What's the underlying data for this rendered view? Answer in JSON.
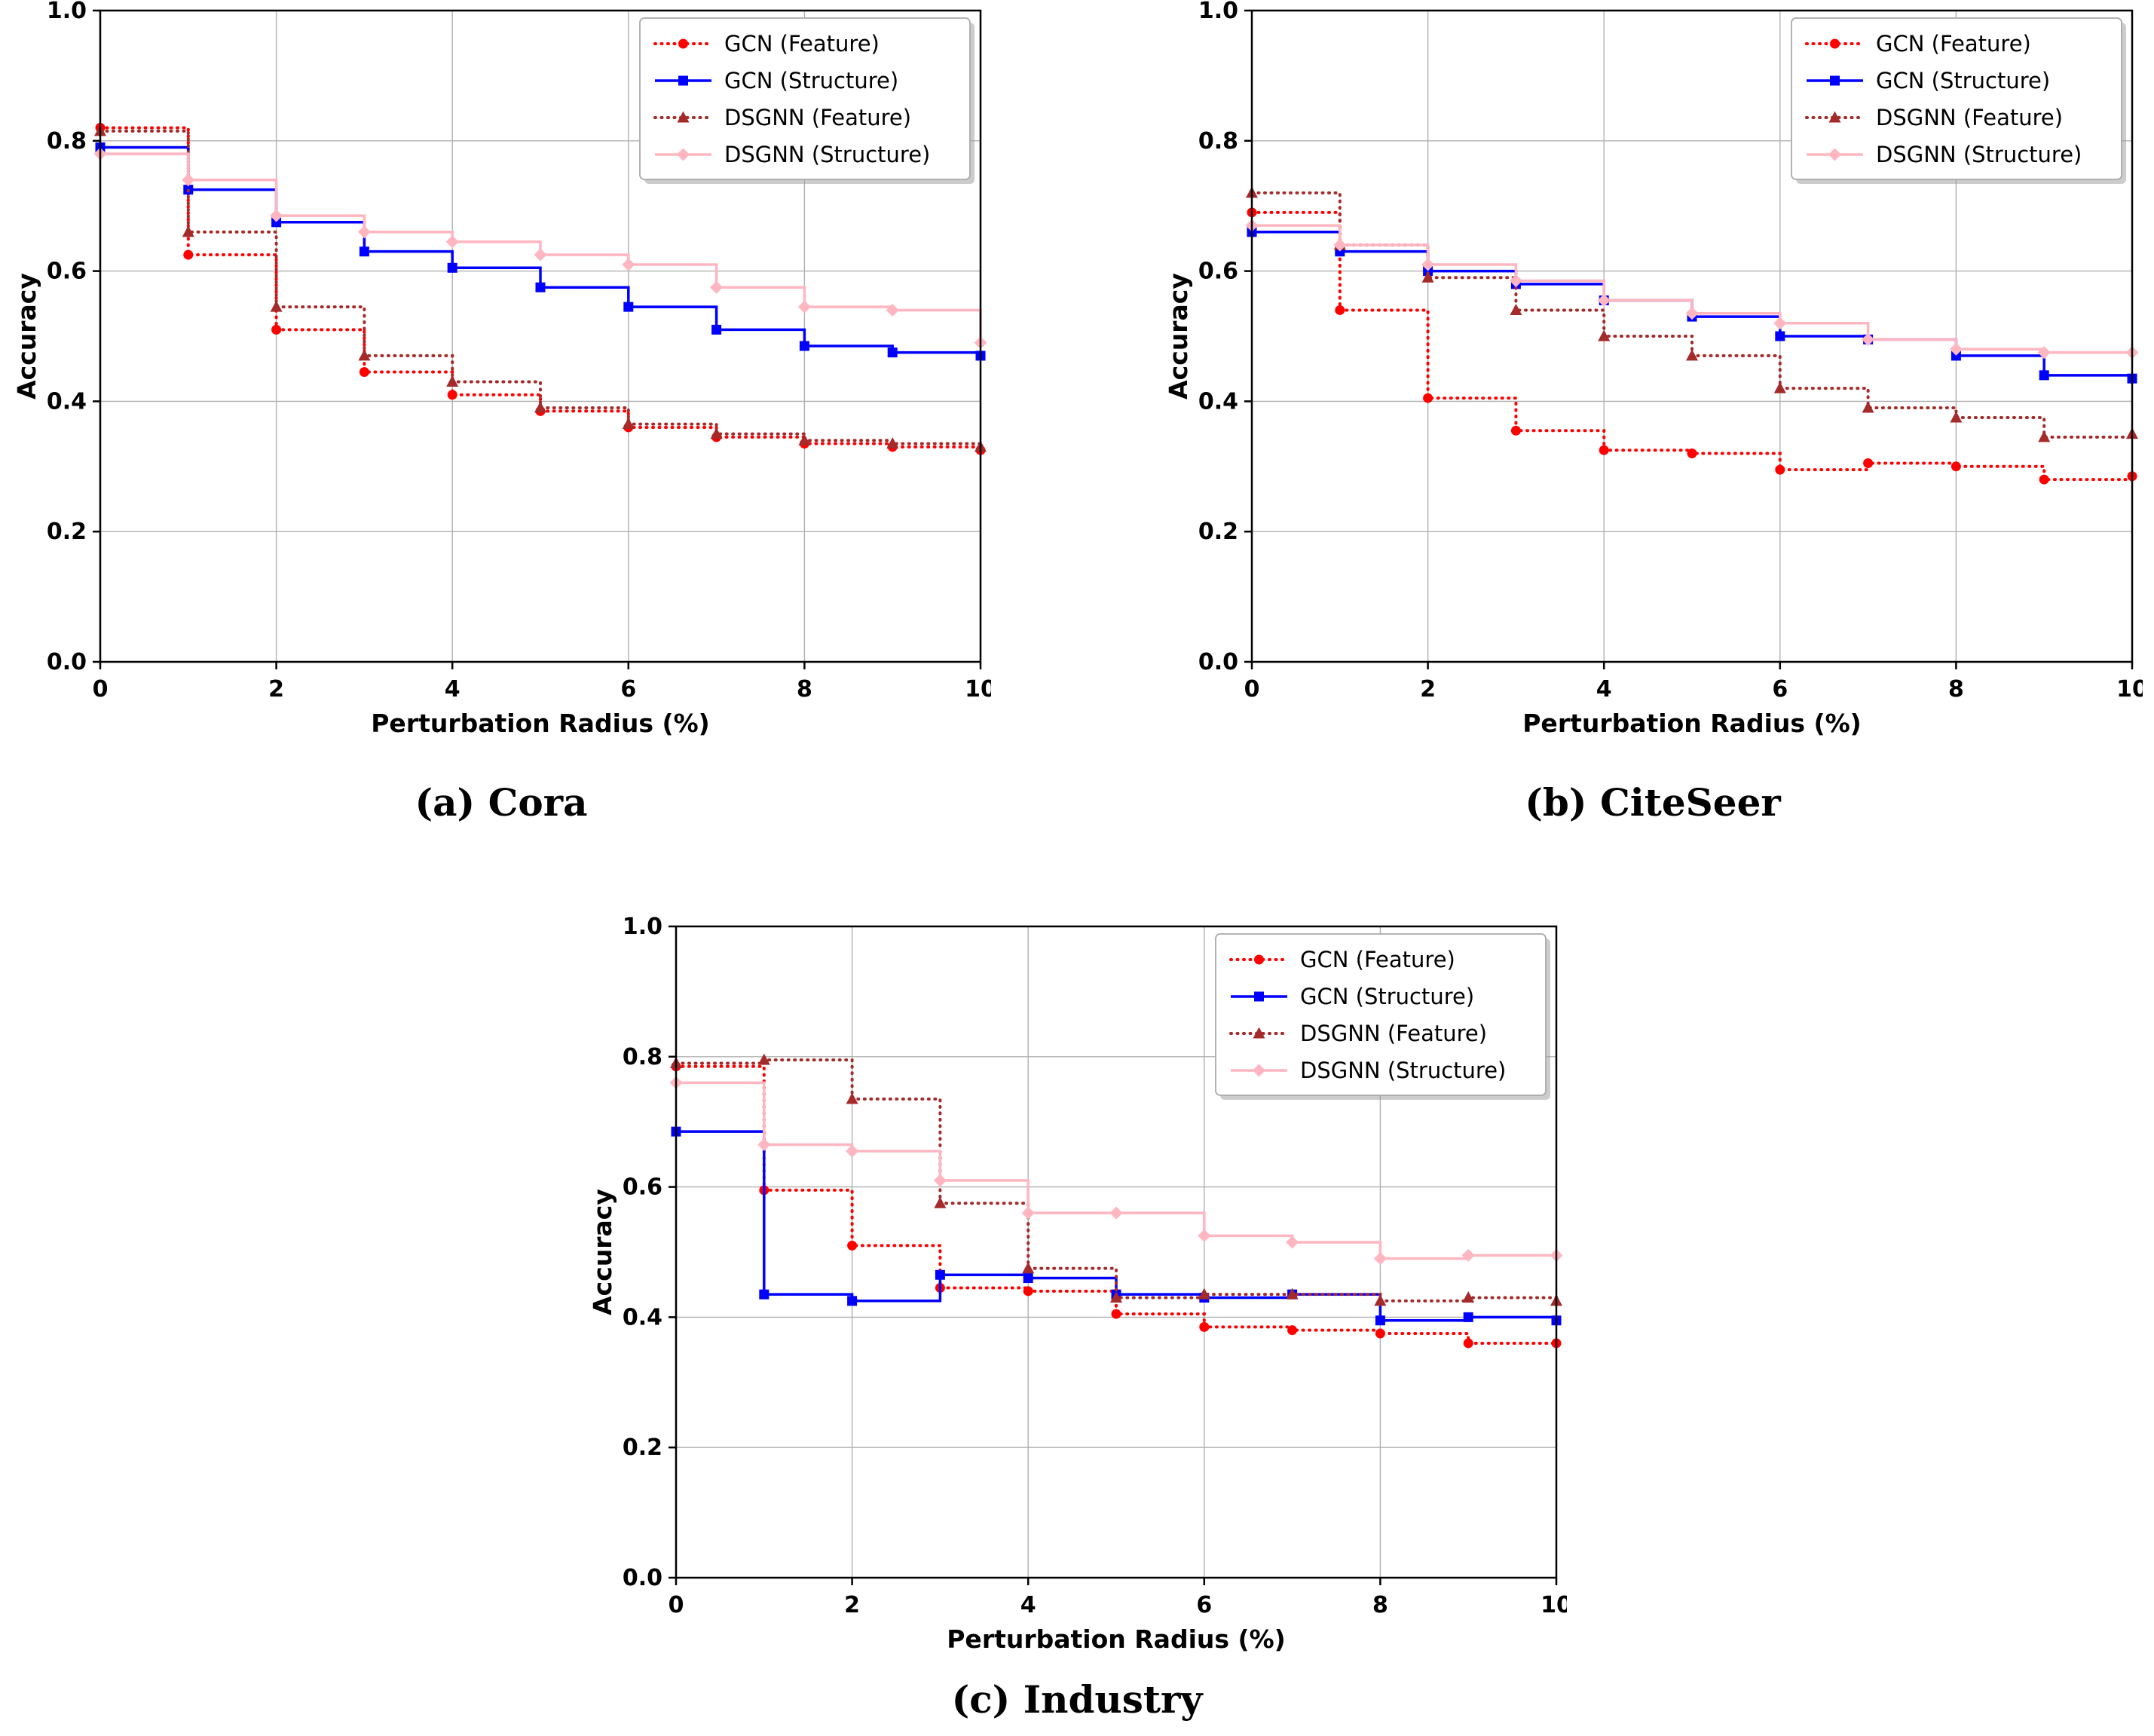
{
  "figure": {
    "background": "#ffffff",
    "captions": [
      "(a) Cora",
      "(b) CiteSeer",
      "(c) Industry"
    ]
  },
  "series_meta": [
    {
      "name": "GCN (Feature)",
      "color": "#ff0000",
      "line_style": "dotted",
      "marker": "circle"
    },
    {
      "name": "GCN (Structure)",
      "color": "#0000ff",
      "line_style": "solid",
      "marker": "square"
    },
    {
      "name": "DSGNN (Feature)",
      "color": "#a52a2a",
      "line_style": "dotted",
      "marker": "triangle"
    },
    {
      "name": "DSGNN (Structure)",
      "color": "#ffb6c1",
      "line_style": "solid",
      "marker": "diamond"
    }
  ],
  "chart_data": [
    {
      "type": "line",
      "step": "post",
      "title": "(a) Cora",
      "xlabel": "Perturbation Radius (%)",
      "ylabel": "Accuracy",
      "xlim": [
        0,
        10
      ],
      "ylim": [
        0.0,
        1.0
      ],
      "xticks": [
        0,
        2,
        4,
        6,
        8,
        10
      ],
      "yticks": [
        0.0,
        0.2,
        0.4,
        0.6,
        0.8,
        1.0
      ],
      "grid": true,
      "legend_position": "upper right",
      "x": [
        0,
        1,
        2,
        3,
        4,
        5,
        6,
        7,
        8,
        9,
        10
      ],
      "series": [
        {
          "name": "GCN (Feature)",
          "values": [
            0.82,
            0.625,
            0.51,
            0.445,
            0.41,
            0.385,
            0.36,
            0.345,
            0.335,
            0.33,
            0.325
          ]
        },
        {
          "name": "GCN (Structure)",
          "values": [
            0.79,
            0.725,
            0.675,
            0.63,
            0.605,
            0.575,
            0.545,
            0.51,
            0.485,
            0.475,
            0.47
          ]
        },
        {
          "name": "DSGNN (Feature)",
          "values": [
            0.815,
            0.66,
            0.545,
            0.47,
            0.43,
            0.39,
            0.365,
            0.35,
            0.34,
            0.335,
            0.33
          ]
        },
        {
          "name": "DSGNN (Structure)",
          "values": [
            0.78,
            0.74,
            0.685,
            0.66,
            0.645,
            0.625,
            0.61,
            0.575,
            0.545,
            0.54,
            0.49
          ]
        }
      ]
    },
    {
      "type": "line",
      "step": "post",
      "title": "(b) CiteSeer",
      "xlabel": "Perturbation Radius (%)",
      "ylabel": "Accuracy",
      "xlim": [
        0,
        10
      ],
      "ylim": [
        0.0,
        1.0
      ],
      "xticks": [
        0,
        2,
        4,
        6,
        8,
        10
      ],
      "yticks": [
        0.0,
        0.2,
        0.4,
        0.6,
        0.8,
        1.0
      ],
      "grid": true,
      "legend_position": "upper right",
      "x": [
        0,
        1,
        2,
        3,
        4,
        5,
        6,
        7,
        8,
        9,
        10
      ],
      "series": [
        {
          "name": "GCN (Feature)",
          "values": [
            0.69,
            0.54,
            0.405,
            0.355,
            0.325,
            0.32,
            0.295,
            0.305,
            0.3,
            0.28,
            0.285
          ]
        },
        {
          "name": "GCN (Structure)",
          "values": [
            0.66,
            0.63,
            0.6,
            0.58,
            0.555,
            0.53,
            0.5,
            0.495,
            0.47,
            0.44,
            0.435
          ]
        },
        {
          "name": "DSGNN (Feature)",
          "values": [
            0.72,
            0.64,
            0.59,
            0.54,
            0.5,
            0.47,
            0.42,
            0.39,
            0.375,
            0.345,
            0.35
          ]
        },
        {
          "name": "DSGNN (Structure)",
          "values": [
            0.67,
            0.64,
            0.61,
            0.585,
            0.555,
            0.535,
            0.52,
            0.495,
            0.48,
            0.475,
            0.475
          ]
        }
      ]
    },
    {
      "type": "line",
      "step": "post",
      "title": "(c) Industry",
      "xlabel": "Perturbation Radius (%)",
      "ylabel": "Accuracy",
      "xlim": [
        0,
        10
      ],
      "ylim": [
        0.0,
        1.0
      ],
      "xticks": [
        0,
        2,
        4,
        6,
        8,
        10
      ],
      "yticks": [
        0.0,
        0.2,
        0.4,
        0.6,
        0.8,
        1.0
      ],
      "grid": true,
      "legend_position": "upper right",
      "x": [
        0,
        1,
        2,
        3,
        4,
        5,
        6,
        7,
        8,
        9,
        10
      ],
      "series": [
        {
          "name": "GCN (Feature)",
          "values": [
            0.785,
            0.595,
            0.51,
            0.445,
            0.44,
            0.405,
            0.385,
            0.38,
            0.375,
            0.36,
            0.36
          ]
        },
        {
          "name": "GCN (Structure)",
          "values": [
            0.685,
            0.435,
            0.425,
            0.465,
            0.46,
            0.435,
            0.43,
            0.435,
            0.395,
            0.4,
            0.395
          ]
        },
        {
          "name": "DSGNN (Feature)",
          "values": [
            0.79,
            0.795,
            0.735,
            0.575,
            0.475,
            0.43,
            0.435,
            0.435,
            0.425,
            0.43,
            0.425
          ]
        },
        {
          "name": "DSGNN (Structure)",
          "values": [
            0.76,
            0.665,
            0.655,
            0.61,
            0.56,
            0.56,
            0.525,
            0.515,
            0.49,
            0.495,
            0.495
          ]
        }
      ]
    }
  ]
}
